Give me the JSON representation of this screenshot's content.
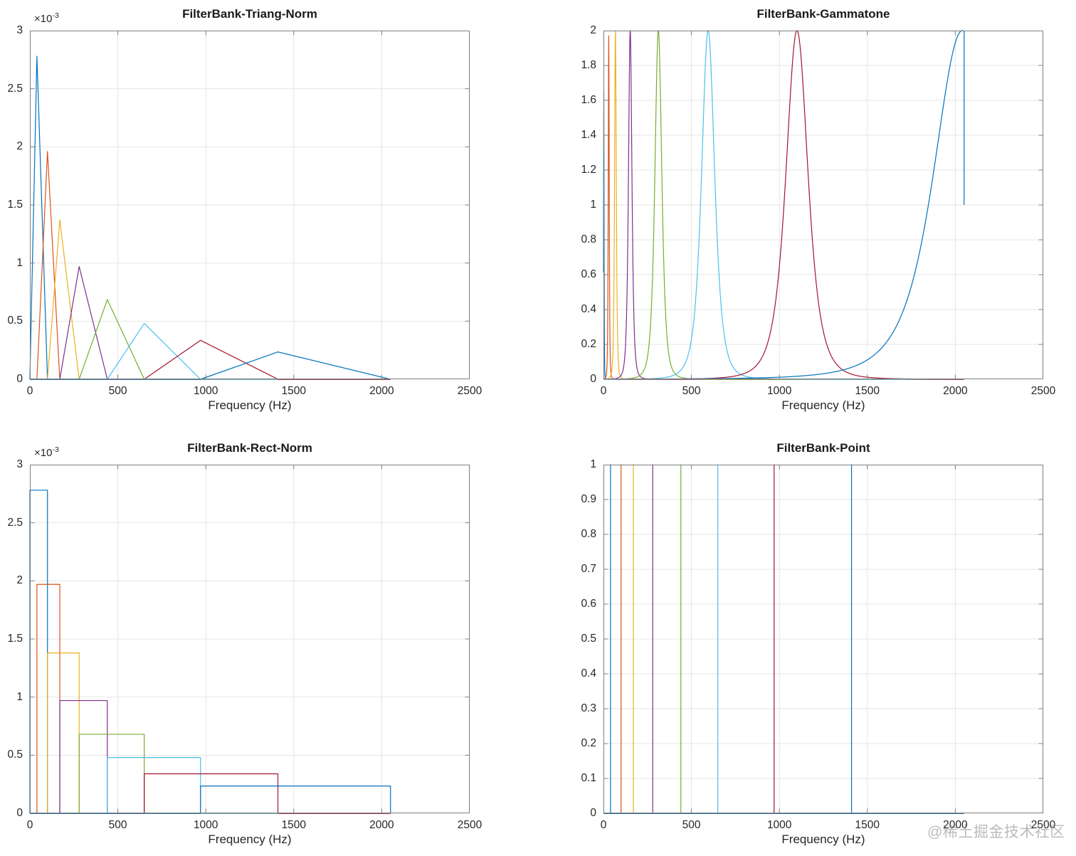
{
  "watermark": "@稀土掘金技术社区",
  "palette": {
    "line_colors": [
      "#0072BD",
      "#D95319",
      "#EDB120",
      "#7E2F8E",
      "#77AC30",
      "#4DBEEE",
      "#A2142F",
      "#0072BD"
    ],
    "frame": "#7f7f7f",
    "grid": "#e6e6e6",
    "tick_label": "#262626",
    "title_color": "#1a1a1a"
  },
  "chart_data": [
    {
      "subtype": "triang",
      "type": "line",
      "title": "FilterBank-Triang-Norm",
      "xlabel": "Frequency (Hz)",
      "y_multiplier": "×10",
      "y_multiplier_exp": "-3",
      "xlim": [
        0,
        2500
      ],
      "ylim": [
        0,
        3
      ],
      "xticks": [
        0,
        500,
        1000,
        1500,
        2000,
        2500
      ],
      "yticks": [
        0,
        0.5,
        1,
        1.5,
        2,
        2.5,
        3
      ],
      "grid": true,
      "legend": "none",
      "breakpoints": [
        0,
        40,
        100,
        170,
        280,
        440,
        650,
        970,
        1410,
        2050
      ],
      "peak_heights": [
        2.78,
        1.96,
        1.37,
        0.97,
        0.685,
        0.48,
        0.335,
        0.235
      ],
      "x_end": 2050
    },
    {
      "subtype": "gammatone",
      "type": "line",
      "title": "FilterBank-Gammatone",
      "xlabel": "Frequency (Hz)",
      "xlim": [
        0,
        2500
      ],
      "ylim": [
        0,
        2
      ],
      "xticks": [
        0,
        500,
        1000,
        1500,
        2000,
        2500
      ],
      "yticks": [
        0,
        0.2,
        0.4,
        0.6,
        0.8,
        1,
        1.2,
        1.4,
        1.6,
        1.8,
        2
      ],
      "grid": true,
      "legend": "none",
      "centers": [
        2,
        30,
        68,
        152,
        312,
        595,
        1100,
        2040
      ],
      "half_widths": [
        2.5,
        5,
        9,
        18,
        36,
        68,
        115,
        300
      ],
      "peak_heights": [
        1.65,
        1.97,
        2,
        2,
        2,
        2,
        2,
        2
      ],
      "x_end": 2050,
      "end_value": 1
    },
    {
      "subtype": "rect",
      "type": "line",
      "title": "FilterBank-Rect-Norm",
      "xlabel": "Frequency (Hz)",
      "y_multiplier": "×10",
      "y_multiplier_exp": "-3",
      "xlim": [
        0,
        2500
      ],
      "ylim": [
        0,
        3
      ],
      "xticks": [
        0,
        500,
        1000,
        1500,
        2000,
        2500
      ],
      "yticks": [
        0,
        0.5,
        1,
        1.5,
        2,
        2.5,
        3
      ],
      "grid": true,
      "legend": "none",
      "breakpoints": [
        0,
        40,
        100,
        170,
        280,
        440,
        650,
        970,
        1410,
        2050
      ],
      "peak_heights": [
        2.78,
        1.97,
        1.38,
        0.97,
        0.68,
        0.48,
        0.34,
        0.235
      ],
      "x_end": 2050
    },
    {
      "subtype": "point",
      "type": "line",
      "title": "FilterBank-Point",
      "xlabel": "Frequency (Hz)",
      "xlim": [
        0,
        2500
      ],
      "ylim": [
        0,
        1
      ],
      "xticks": [
        0,
        500,
        1000,
        1500,
        2000,
        2500
      ],
      "yticks": [
        0,
        0.1,
        0.2,
        0.3,
        0.4,
        0.5,
        0.6,
        0.7,
        0.8,
        0.9,
        1
      ],
      "grid": true,
      "legend": "none",
      "centers": [
        40,
        100,
        170,
        280,
        440,
        650,
        970,
        1410
      ],
      "peak_height": 1,
      "x_end": 2050
    }
  ]
}
